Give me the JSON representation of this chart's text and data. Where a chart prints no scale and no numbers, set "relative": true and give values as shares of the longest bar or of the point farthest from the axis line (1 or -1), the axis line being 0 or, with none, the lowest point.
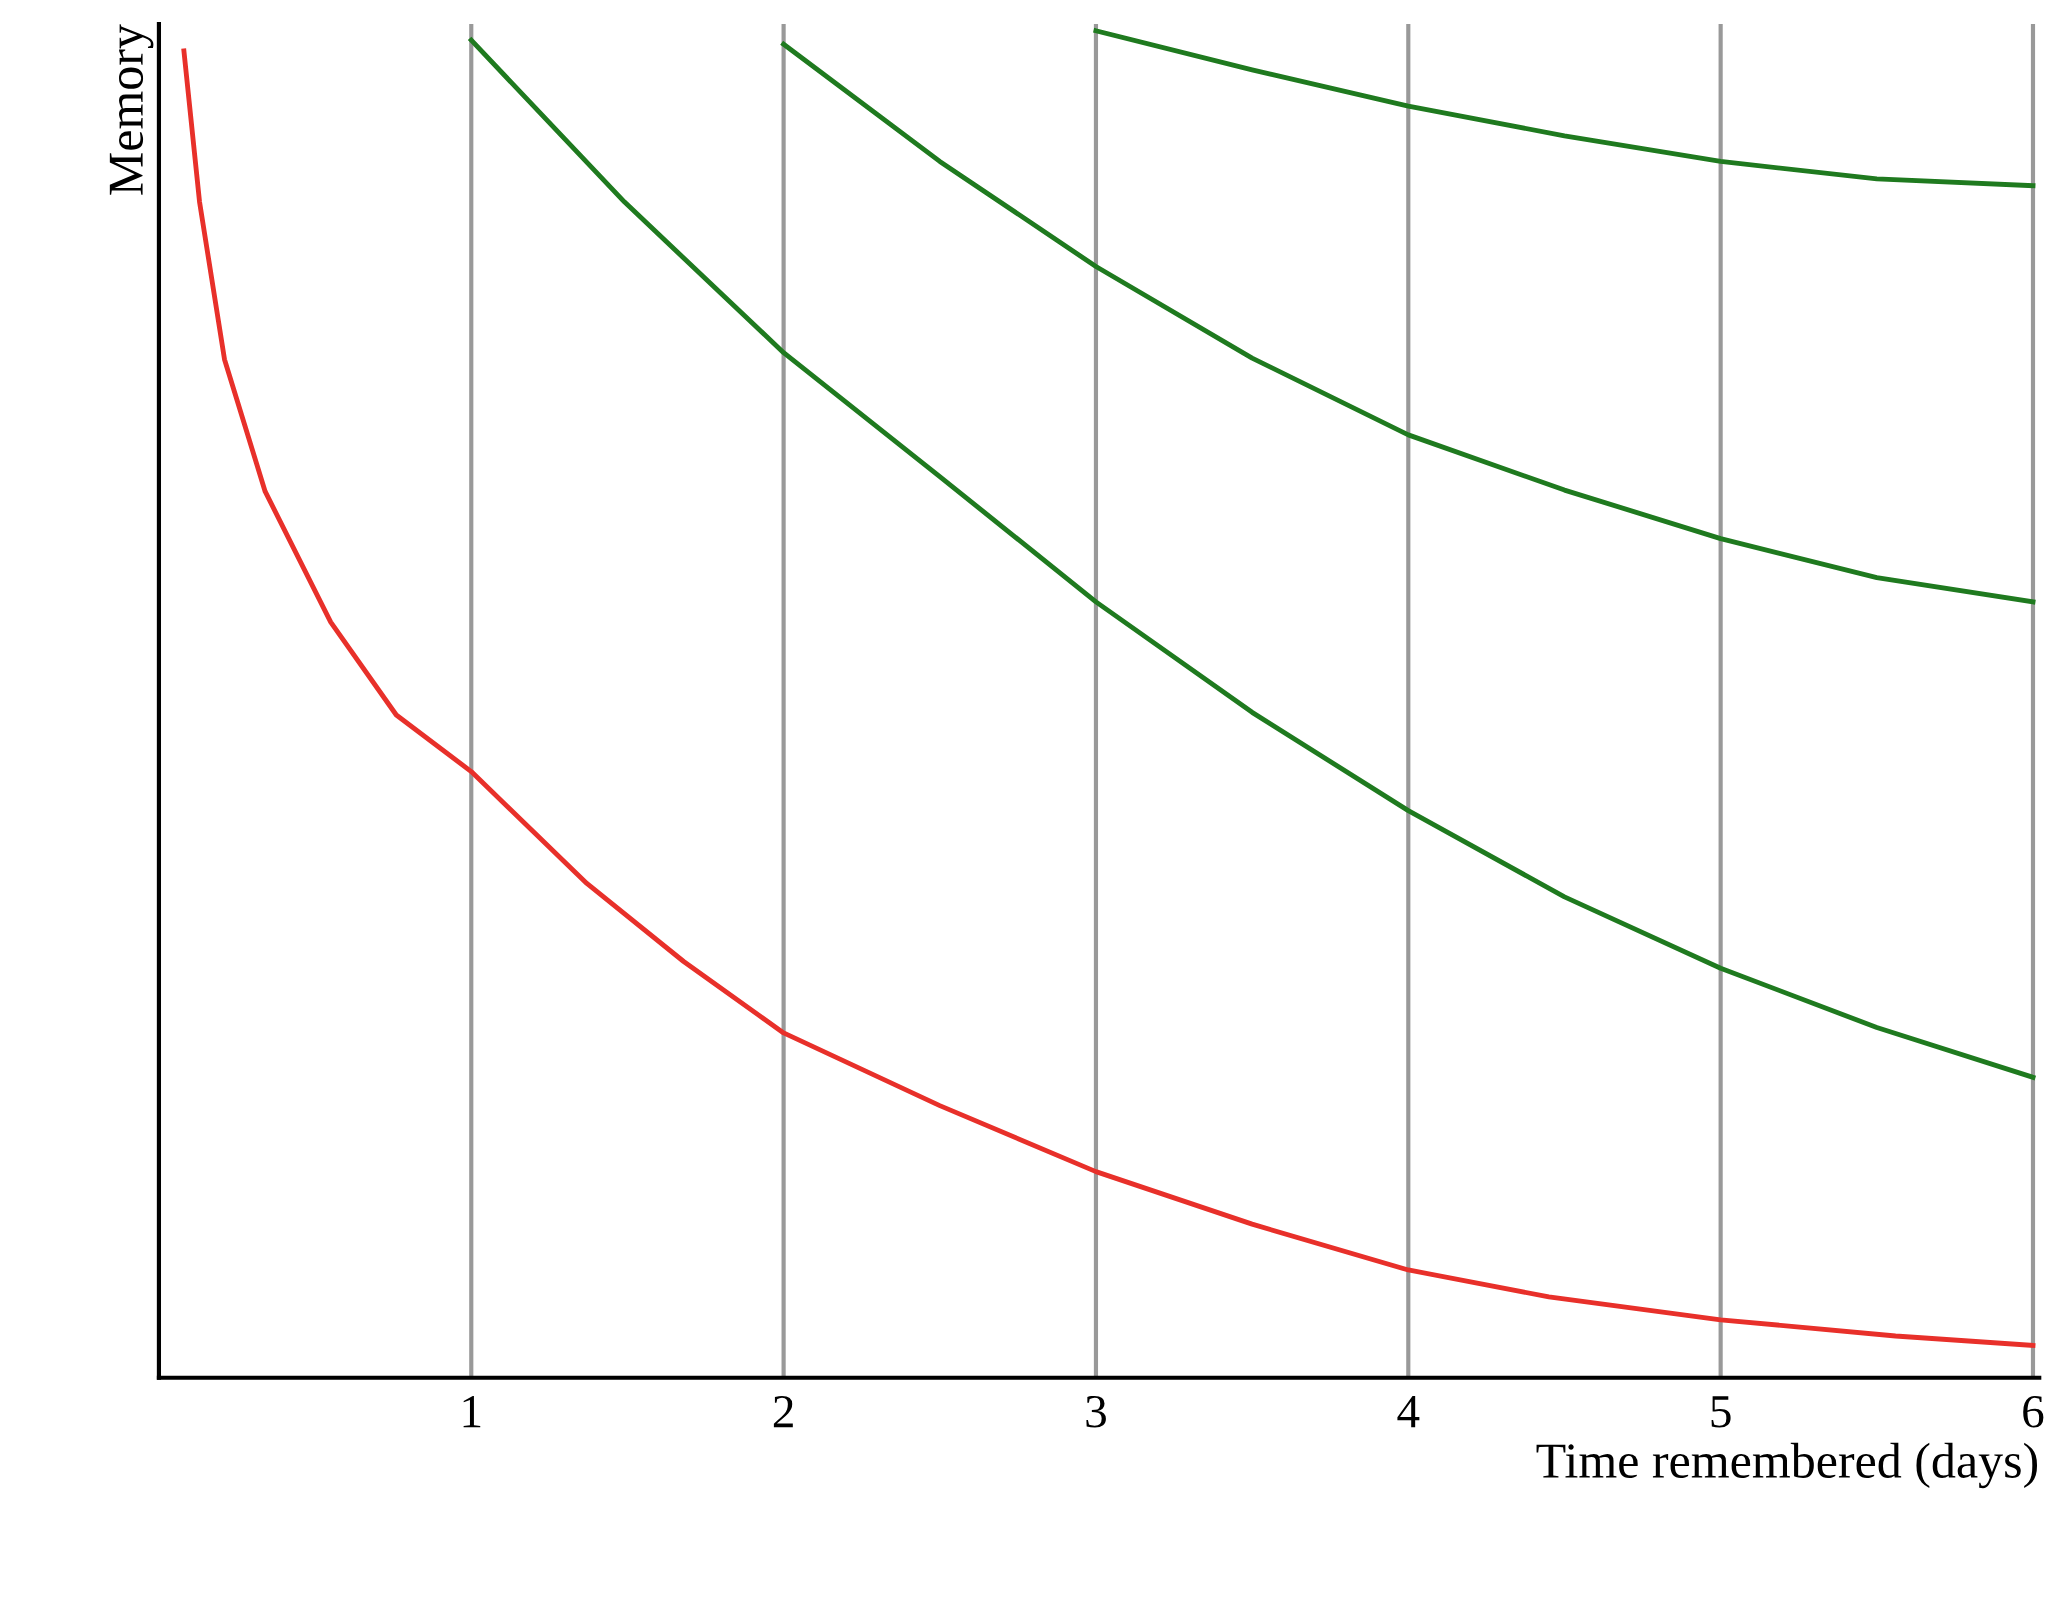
{
  "chart_data": {
    "type": "line",
    "relative": true,
    "xlabel": "Time remembered (days)",
    "ylabel": "Memory",
    "xlim": [
      0,
      6.02
    ],
    "xticks": [
      1,
      2,
      3,
      4,
      5,
      6
    ],
    "grid": "x",
    "legend": false,
    "marker": "none",
    "line_style": "solid",
    "series": [
      {
        "color": "#e8302a",
        "x": [
          0.08,
          0.13,
          0.21,
          0.34,
          0.55,
          0.76,
          1.0,
          1.37,
          1.68,
          2.0,
          2.5,
          3.0,
          3.5,
          4.0,
          4.45,
          5.0,
          5.56,
          6.0
        ],
        "values": [
          0.985,
          0.873,
          0.756,
          0.658,
          0.561,
          0.492,
          0.45,
          0.367,
          0.309,
          0.256,
          0.202,
          0.153,
          0.114,
          0.08,
          0.06,
          0.043,
          0.031,
          0.024
        ]
      },
      {
        "color": "#1f7a1f",
        "x": [
          1.0,
          1.49,
          2.0,
          2.5,
          3.0,
          3.5,
          4.0,
          4.5,
          5.0,
          5.5,
          6.0
        ],
        "values": [
          0.993,
          0.873,
          0.761,
          0.669,
          0.576,
          0.494,
          0.421,
          0.357,
          0.304,
          0.26,
          0.223
        ]
      },
      {
        "color": "#1f7a1f",
        "x": [
          2.0,
          2.5,
          3.0,
          3.5,
          4.0,
          4.5,
          5.0,
          5.5,
          6.0
        ],
        "values": [
          0.99,
          0.903,
          0.825,
          0.757,
          0.7,
          0.659,
          0.623,
          0.594,
          0.576
        ]
      },
      {
        "color": "#1f7a1f",
        "x": [
          3.0,
          3.5,
          4.0,
          4.5,
          5.0,
          5.5,
          6.0
        ],
        "values": [
          1.0,
          0.971,
          0.944,
          0.922,
          0.903,
          0.89,
          0.885
        ]
      }
    ]
  }
}
